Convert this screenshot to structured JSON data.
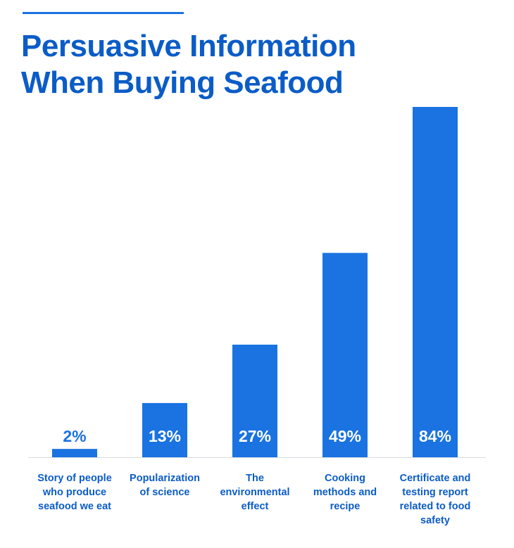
{
  "header": {
    "title_line1": "Persuasive Information",
    "title_line2": "When Buying Seafood"
  },
  "colors": {
    "bar": "#1a73e0",
    "title": "#0b5cc7",
    "value_on_bar": "#ffffff",
    "value_above_bar": "#1a73e0",
    "category_label": "#0b5cc7",
    "baseline": "#d6dbe3"
  },
  "chart_data": {
    "type": "bar",
    "title": "Persuasive Information When Buying Seafood",
    "xlabel": "",
    "ylabel": "",
    "ylim": [
      0,
      84
    ],
    "grid": false,
    "categories": [
      "Story of people who produce seafood we eat",
      "Popularization of science",
      "The environmental effect",
      "Cooking methods and recipe",
      "Certificate and testing report related to food safety"
    ],
    "category_lines": [
      [
        "Story of people",
        "who produce",
        "seafood we eat"
      ],
      [
        "Popularization",
        "of science"
      ],
      [
        "The",
        "environmental",
        "effect"
      ],
      [
        "Cooking",
        "methods and",
        "recipe"
      ],
      [
        "Certificate and",
        "testing report",
        "related to food",
        "safety"
      ]
    ],
    "values": [
      2,
      13,
      27,
      49,
      84
    ],
    "value_labels": [
      "2%",
      "13%",
      "27%",
      "49%",
      "84%"
    ]
  }
}
